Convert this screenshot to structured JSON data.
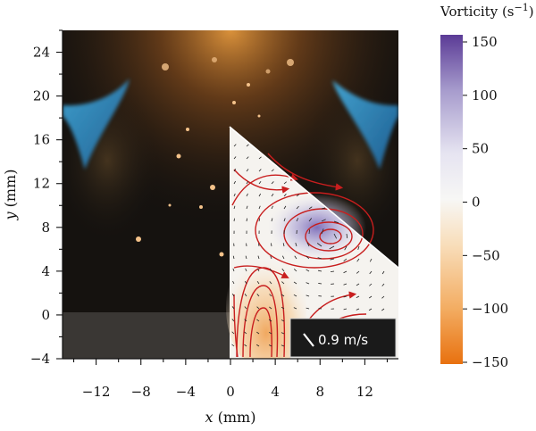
{
  "figure": {
    "xlabel_var": "x",
    "xlabel_unit": " (mm)",
    "ylabel_var": "y",
    "ylabel_unit": " (mm)",
    "xlim": [
      -15,
      15
    ],
    "ylim": [
      -4,
      26
    ],
    "x_ticks": [
      -12,
      -8,
      -4,
      0,
      4,
      8,
      12
    ],
    "y_ticks": [
      -4,
      0,
      4,
      8,
      12,
      16,
      20,
      24
    ],
    "x_tick_labels": [
      "−12",
      "−8",
      "−4",
      "0",
      "4",
      "8",
      "12"
    ],
    "y_tick_labels": [
      "−4",
      "0",
      "4",
      "8",
      "12",
      "16",
      "20",
      "24"
    ],
    "scale_bar_label": "0.9 m/s",
    "vortex_center_mm": [
      9,
      7.5
    ]
  },
  "colorbar": {
    "title_prefix": "Vorticity (s",
    "title_exp": "−1",
    "title_suffix": ")",
    "range": [
      -150,
      150
    ],
    "ticks": [
      150,
      100,
      50,
      0,
      -50,
      -100,
      -150
    ],
    "tick_labels": [
      "150",
      "100",
      "50",
      "0",
      "−50",
      "−100",
      "−150"
    ],
    "colors": {
      "high": "#5b3b96",
      "mid": "#f7f7f5",
      "low": "#e8710f"
    }
  }
}
